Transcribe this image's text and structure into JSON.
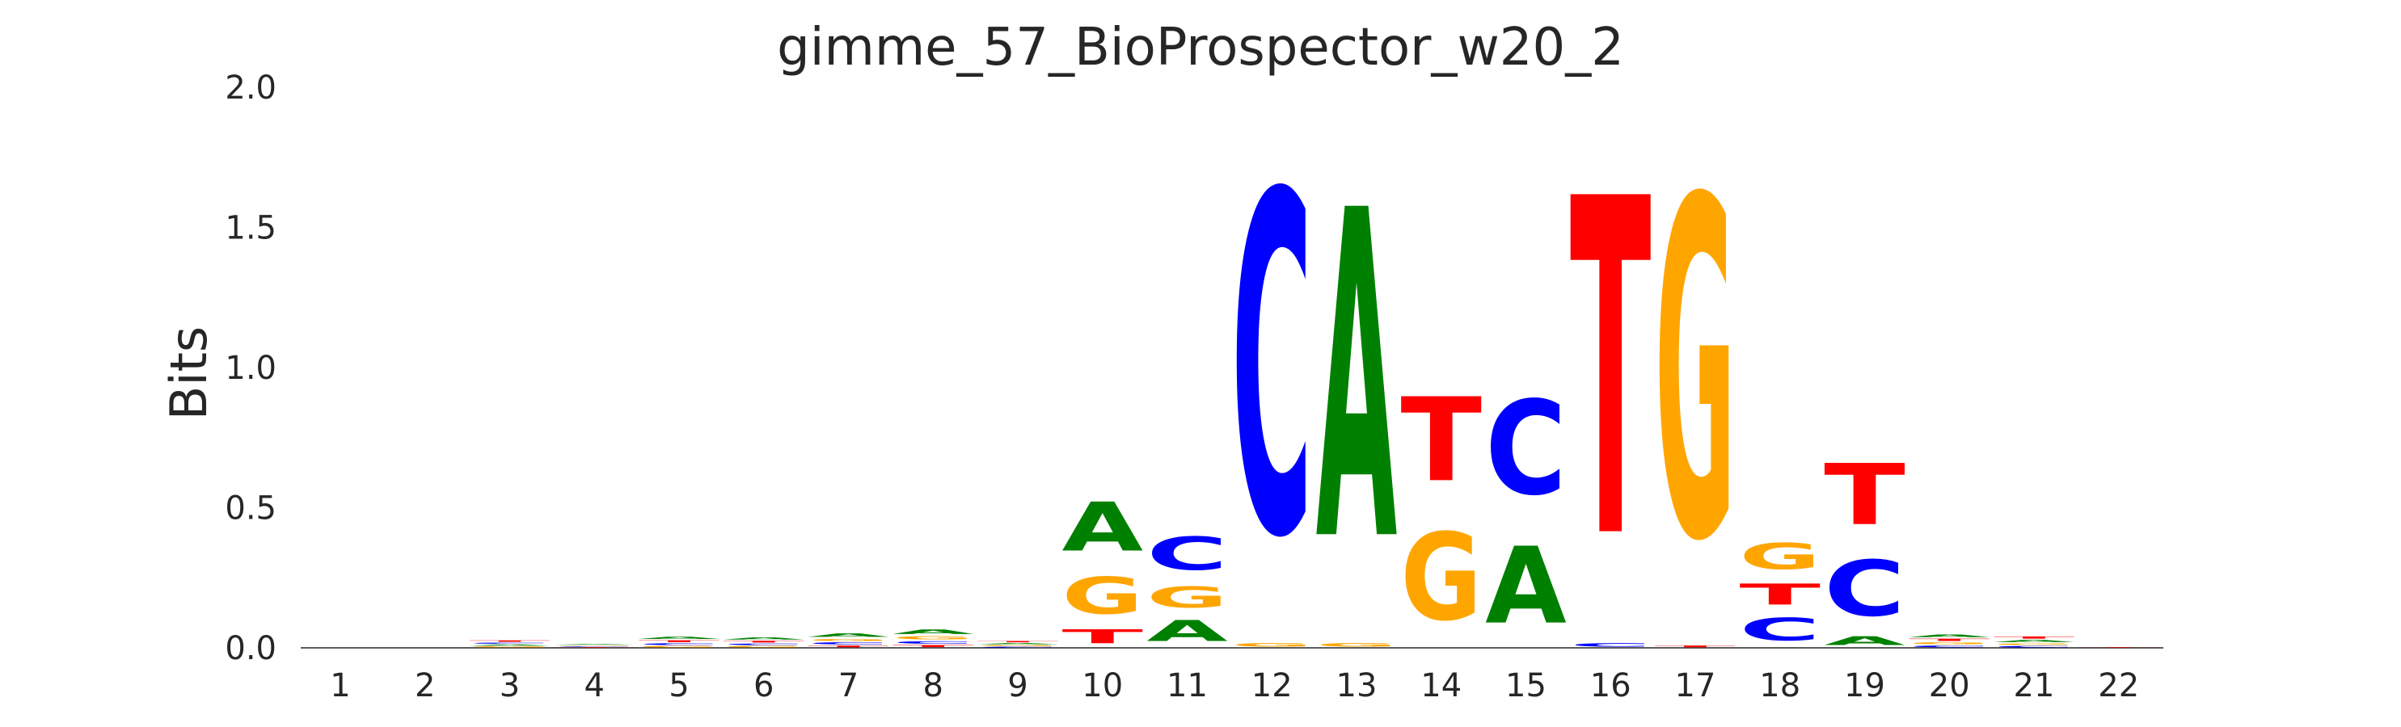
{
  "chart_data": {
    "type": "sequence-logo",
    "title": "gimme_57_BioProspector_w20_2",
    "xlabel": "",
    "ylabel": "Bits",
    "ylim": [
      0,
      2
    ],
    "yticks": [
      "0.0",
      "0.5",
      "1.0",
      "1.5",
      "2.0"
    ],
    "grid": false,
    "colors": {
      "A": "#008000",
      "C": "#0000ff",
      "G": "#ffa500",
      "T": "#ff0000"
    },
    "positions": [
      {
        "label": "1",
        "stack": []
      },
      {
        "label": "2",
        "stack": []
      },
      {
        "label": "3",
        "stack": [
          {
            "l": "G",
            "h": 0.006
          },
          {
            "l": "A",
            "h": 0.007
          },
          {
            "l": "C",
            "h": 0.007
          },
          {
            "l": "T",
            "h": 0.008
          }
        ]
      },
      {
        "label": "4",
        "stack": [
          {
            "l": "T",
            "h": 0.003
          },
          {
            "l": "C",
            "h": 0.003
          },
          {
            "l": "G",
            "h": 0.004
          },
          {
            "l": "A",
            "h": 0.004
          }
        ]
      },
      {
        "label": "5",
        "stack": [
          {
            "l": "G",
            "h": 0.008
          },
          {
            "l": "C",
            "h": 0.01
          },
          {
            "l": "T",
            "h": 0.011
          },
          {
            "l": "A",
            "h": 0.013
          }
        ]
      },
      {
        "label": "6",
        "stack": [
          {
            "l": "G",
            "h": 0.008
          },
          {
            "l": "C",
            "h": 0.009
          },
          {
            "l": "T",
            "h": 0.01
          },
          {
            "l": "A",
            "h": 0.012
          }
        ]
      },
      {
        "label": "7",
        "stack": [
          {
            "l": "T",
            "h": 0.01
          },
          {
            "l": "C",
            "h": 0.012
          },
          {
            "l": "G",
            "h": 0.013
          },
          {
            "l": "A",
            "h": 0.02
          }
        ]
      },
      {
        "label": "8",
        "stack": [
          {
            "l": "T",
            "h": 0.012
          },
          {
            "l": "C",
            "h": 0.014
          },
          {
            "l": "G",
            "h": 0.018
          },
          {
            "l": "A",
            "h": 0.026
          }
        ]
      },
      {
        "label": "9",
        "stack": [
          {
            "l": "C",
            "h": 0.005
          },
          {
            "l": "G",
            "h": 0.006
          },
          {
            "l": "A",
            "h": 0.007
          },
          {
            "l": "T",
            "h": 0.008
          }
        ]
      },
      {
        "label": "10",
        "stack": [
          {
            "l": "T",
            "h": 0.08
          },
          {
            "l": "G",
            "h": 0.21
          },
          {
            "l": "A",
            "h": 0.28
          }
        ]
      },
      {
        "label": "11",
        "stack": [
          {
            "l": "A",
            "h": 0.12
          },
          {
            "l": "G",
            "h": 0.12
          },
          {
            "l": "C",
            "h": 0.19
          }
        ]
      },
      {
        "label": "12",
        "stack": [
          {
            "l": "G",
            "h": 0.02
          },
          {
            "l": "C",
            "h": 1.95
          }
        ]
      },
      {
        "label": "13",
        "stack": [
          {
            "l": "G",
            "h": 0.02
          },
          {
            "l": "A",
            "h": 1.88
          }
        ]
      },
      {
        "label": "14",
        "stack": [
          {
            "l": "G",
            "h": 0.5
          },
          {
            "l": "T",
            "h": 0.48
          }
        ]
      },
      {
        "label": "15",
        "stack": [
          {
            "l": "A",
            "h": 0.44
          },
          {
            "l": "C",
            "h": 0.54
          }
        ]
      },
      {
        "label": "16",
        "stack": [
          {
            "l": "C",
            "h": 0.02
          },
          {
            "l": "T",
            "h": 1.93
          }
        ]
      },
      {
        "label": "17",
        "stack": [
          {
            "l": "T",
            "h": 0.01
          },
          {
            "l": "G",
            "h": 1.94
          }
        ]
      },
      {
        "label": "18",
        "stack": [
          {
            "l": "C",
            "h": 0.13
          },
          {
            "l": "T",
            "h": 0.12
          },
          {
            "l": "G",
            "h": 0.15
          }
        ]
      },
      {
        "label": "19",
        "stack": [
          {
            "l": "A",
            "h": 0.05
          },
          {
            "l": "C",
            "h": 0.32
          },
          {
            "l": "T",
            "h": 0.35
          }
        ]
      },
      {
        "label": "20",
        "stack": [
          {
            "l": "C",
            "h": 0.01
          },
          {
            "l": "G",
            "h": 0.012
          },
          {
            "l": "T",
            "h": 0.013
          },
          {
            "l": "A",
            "h": 0.015
          }
        ]
      },
      {
        "label": "21",
        "stack": [
          {
            "l": "C",
            "h": 0.008
          },
          {
            "l": "G",
            "h": 0.01
          },
          {
            "l": "A",
            "h": 0.012
          },
          {
            "l": "T",
            "h": 0.013
          }
        ]
      },
      {
        "label": "22",
        "stack": [
          {
            "l": "T",
            "h": 0.003
          }
        ]
      }
    ]
  }
}
